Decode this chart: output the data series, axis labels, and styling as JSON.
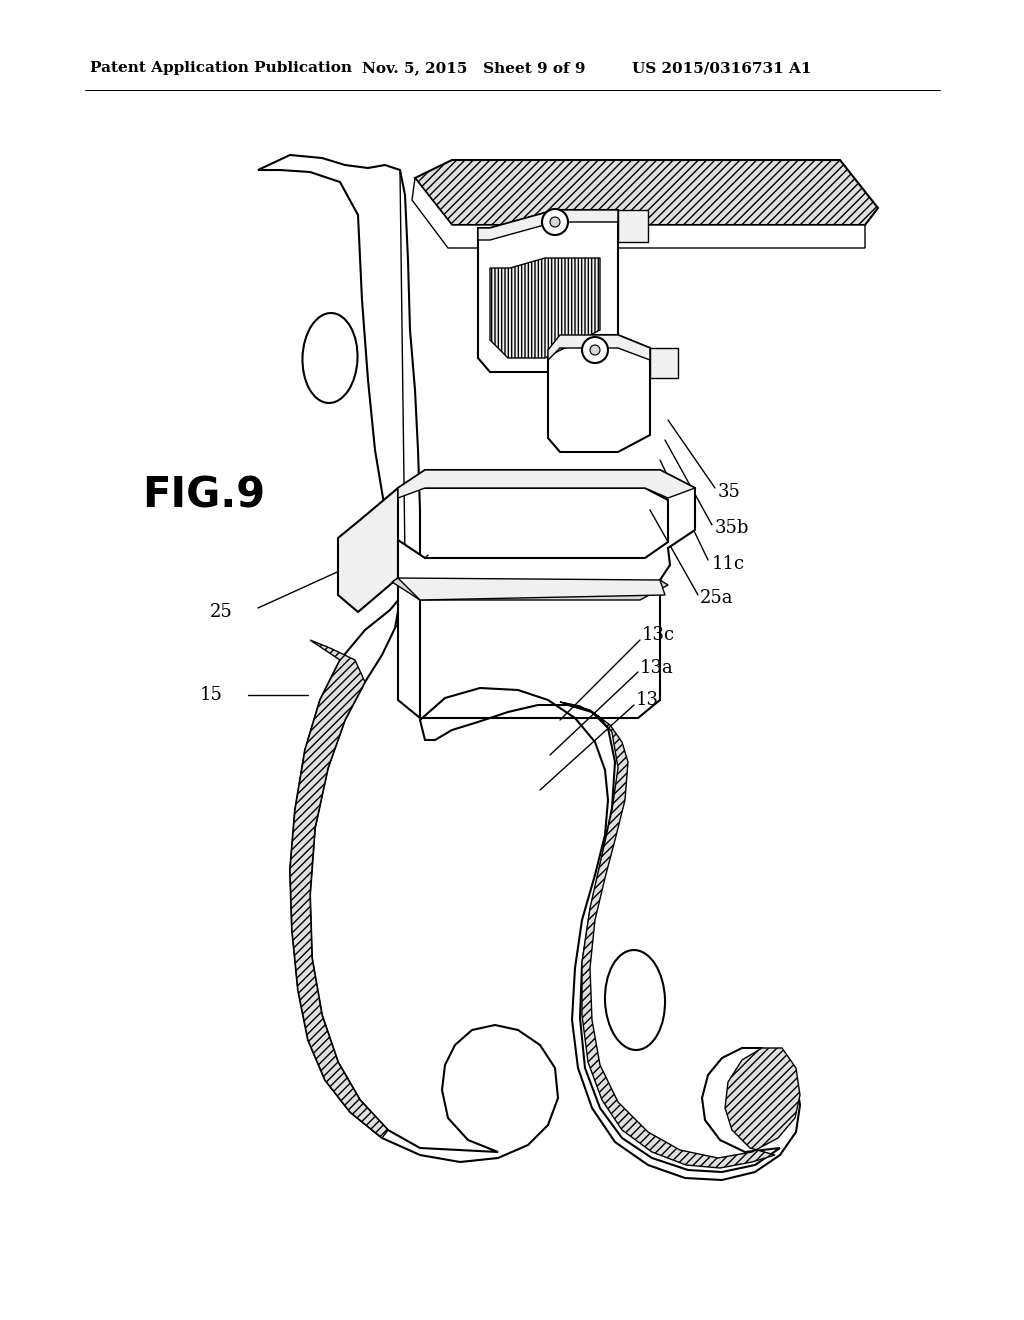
{
  "background_color": "#ffffff",
  "header_left": "Patent Application Publication",
  "header_mid": "Nov. 5, 2015   Sheet 9 of 9",
  "header_right": "US 2015/0316731 A1",
  "fig_label": "FIG.9",
  "line_width": 1.5,
  "thin_lw": 1.0,
  "label_fontsize": 13,
  "fig_fontsize": 30,
  "header_fontsize": 11
}
